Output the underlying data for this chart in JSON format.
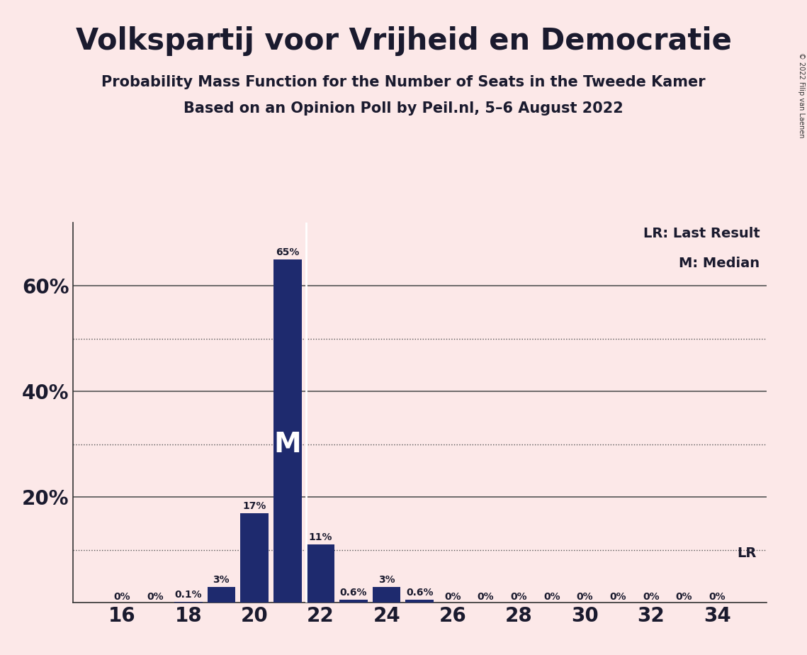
{
  "title": "Volkspartij voor Vrijheid en Democratie",
  "subtitle1": "Probability Mass Function for the Number of Seats in the Tweede Kamer",
  "subtitle2": "Based on an Opinion Poll by Peil.nl, 5–6 August 2022",
  "copyright": "© 2022 Filip van Laenen",
  "seats": [
    16,
    17,
    18,
    19,
    20,
    21,
    22,
    23,
    24,
    25,
    26,
    27,
    28,
    29,
    30,
    31,
    32,
    33,
    34
  ],
  "probabilities": [
    0.0,
    0.0,
    0.001,
    0.03,
    0.17,
    0.65,
    0.11,
    0.006,
    0.03,
    0.006,
    0.0,
    0.0,
    0.0,
    0.0,
    0.0,
    0.0,
    0.0,
    0.0,
    0.0
  ],
  "labels": [
    "0%",
    "0%",
    "0.1%",
    "3%",
    "17%",
    "65%",
    "11%",
    "0.6%",
    "3%",
    "0.6%",
    "0%",
    "0%",
    "0%",
    "0%",
    "0%",
    "0%",
    "0%",
    "0%",
    "0%"
  ],
  "bar_color": "#1e2a6e",
  "background_color": "#fce8e8",
  "median_seat": 21,
  "last_result_seat": 22,
  "dotted_yticks": [
    0.1,
    0.3,
    0.5
  ],
  "solid_yticks": [
    0.2,
    0.4,
    0.6
  ],
  "xtick_labels": [
    "16",
    "18",
    "20",
    "22",
    "24",
    "26",
    "28",
    "30",
    "32",
    "34"
  ],
  "xtick_positions": [
    16,
    18,
    20,
    22,
    24,
    26,
    28,
    30,
    32,
    34
  ],
  "xlim": [
    14.5,
    35.5
  ],
  "ylim": [
    0,
    0.72
  ],
  "legend_lr": "LR: Last Result",
  "legend_m": "M: Median",
  "label_m": "M",
  "label_lr": "LR"
}
